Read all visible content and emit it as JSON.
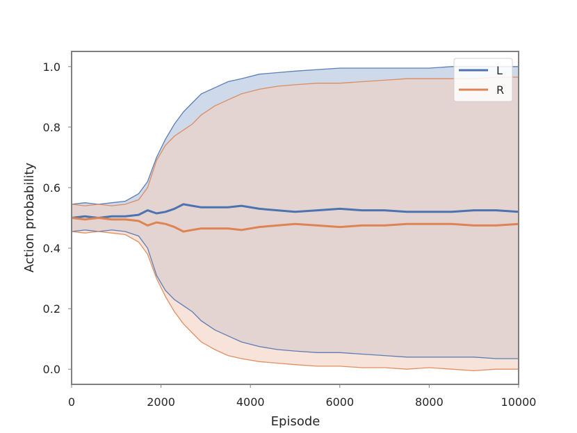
{
  "chart_data": {
    "type": "line",
    "title": "",
    "xlabel": "Episode",
    "ylabel": "Action probability",
    "xlim": [
      0,
      10000
    ],
    "ylim": [
      -0.05,
      1.05
    ],
    "xticks": [
      0,
      2000,
      4000,
      6000,
      8000,
      10000
    ],
    "yticks": [
      0.0,
      0.2,
      0.4,
      0.6,
      0.8,
      1.0
    ],
    "grid": false,
    "legend_position": "top-right",
    "series": [
      {
        "name": "L",
        "color": "#4c72b0",
        "band_fill": "#c6d2e6",
        "x": [
          0,
          300,
          600,
          900,
          1200,
          1500,
          1700,
          1900,
          2100,
          2300,
          2500,
          2700,
          2900,
          3200,
          3500,
          3800,
          4200,
          4600,
          5000,
          5500,
          6000,
          6500,
          7000,
          7500,
          8000,
          8500,
          9000,
          9500,
          10000
        ],
        "mean": [
          0.5,
          0.505,
          0.5,
          0.505,
          0.505,
          0.51,
          0.525,
          0.515,
          0.52,
          0.53,
          0.545,
          0.54,
          0.535,
          0.535,
          0.535,
          0.54,
          0.53,
          0.525,
          0.52,
          0.525,
          0.53,
          0.525,
          0.525,
          0.52,
          0.52,
          0.52,
          0.525,
          0.525,
          0.52
        ],
        "upper": [
          0.545,
          0.55,
          0.545,
          0.55,
          0.555,
          0.58,
          0.62,
          0.7,
          0.76,
          0.81,
          0.85,
          0.88,
          0.91,
          0.93,
          0.95,
          0.96,
          0.975,
          0.98,
          0.985,
          0.99,
          0.995,
          0.995,
          0.995,
          0.995,
          0.995,
          1.0,
          1.0,
          1.0,
          1.0
        ],
        "lower": [
          0.455,
          0.46,
          0.455,
          0.46,
          0.455,
          0.44,
          0.4,
          0.31,
          0.26,
          0.23,
          0.21,
          0.19,
          0.16,
          0.13,
          0.11,
          0.09,
          0.075,
          0.065,
          0.06,
          0.055,
          0.055,
          0.05,
          0.045,
          0.04,
          0.04,
          0.04,
          0.04,
          0.035,
          0.035
        ]
      },
      {
        "name": "R",
        "color": "#dd8452",
        "band_fill": "#f2d1bf",
        "x": [
          0,
          300,
          600,
          900,
          1200,
          1500,
          1700,
          1900,
          2100,
          2300,
          2500,
          2700,
          2900,
          3200,
          3500,
          3800,
          4200,
          4600,
          5000,
          5500,
          6000,
          6500,
          7000,
          7500,
          8000,
          8500,
          9000,
          9500,
          10000
        ],
        "mean": [
          0.5,
          0.495,
          0.5,
          0.495,
          0.495,
          0.49,
          0.475,
          0.485,
          0.48,
          0.47,
          0.455,
          0.46,
          0.465,
          0.465,
          0.465,
          0.46,
          0.47,
          0.475,
          0.48,
          0.475,
          0.47,
          0.475,
          0.475,
          0.48,
          0.48,
          0.48,
          0.475,
          0.475,
          0.48
        ],
        "upper": [
          0.545,
          0.54,
          0.545,
          0.54,
          0.545,
          0.56,
          0.6,
          0.69,
          0.74,
          0.77,
          0.79,
          0.81,
          0.84,
          0.87,
          0.89,
          0.91,
          0.925,
          0.935,
          0.94,
          0.945,
          0.945,
          0.95,
          0.955,
          0.96,
          0.96,
          0.96,
          0.96,
          0.965,
          0.965
        ],
        "lower": [
          0.455,
          0.45,
          0.455,
          0.45,
          0.445,
          0.42,
          0.38,
          0.3,
          0.24,
          0.19,
          0.15,
          0.12,
          0.09,
          0.065,
          0.045,
          0.035,
          0.025,
          0.02,
          0.015,
          0.01,
          0.01,
          0.005,
          0.005,
          0.0,
          0.005,
          0.0,
          -0.005,
          0.0,
          0.0
        ]
      }
    ]
  }
}
